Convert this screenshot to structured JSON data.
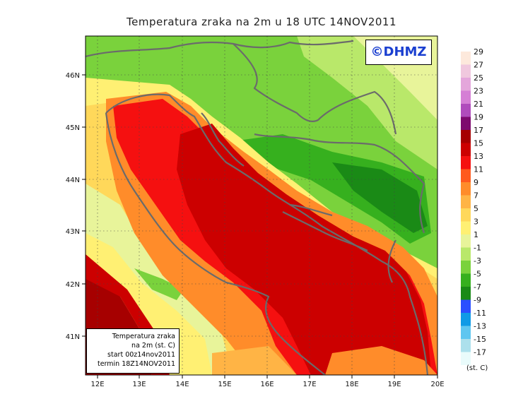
{
  "title": "Temperatura zraka na 2m u 18 UTC 14NOV2011",
  "logo_text": "©DHMZ",
  "info_box": {
    "line1": "Temperatura zraka",
    "line2": "na 2m (st. C)",
    "line3": "start 00z14nov2011",
    "line4": "termin 18Z14NOV2011"
  },
  "lon_ticks": [
    "12E",
    "13E",
    "14E",
    "15E",
    "16E",
    "17E",
    "18E",
    "19E",
    "20E"
  ],
  "lat_ticks": [
    "46N",
    "45N",
    "44N",
    "43N",
    "42N",
    "41N"
  ],
  "legend": {
    "units": "(st. C)",
    "levels": [
      {
        "label": "29",
        "color": "#fde9dc"
      },
      {
        "label": "27",
        "color": "#f0c8de"
      },
      {
        "label": "25",
        "color": "#e4a6db"
      },
      {
        "label": "23",
        "color": "#d57fd5"
      },
      {
        "label": "21",
        "color": "#b04cbc"
      },
      {
        "label": "19",
        "color": "#7e0a6e"
      },
      {
        "label": "17",
        "color": "#a60000"
      },
      {
        "label": "15",
        "color": "#cc0000"
      },
      {
        "label": "13",
        "color": "#f51010"
      },
      {
        "label": "11",
        "color": "#ff5a1e"
      },
      {
        "label": "9",
        "color": "#ff8c2a"
      },
      {
        "label": "7",
        "color": "#ffb445"
      },
      {
        "label": "5",
        "color": "#ffd85a"
      },
      {
        "label": "3",
        "color": "#fff073"
      },
      {
        "label": "1",
        "color": "#e8f49a"
      },
      {
        "label": "-1",
        "color": "#b9e86a"
      },
      {
        "label": "-3",
        "color": "#7ad23c"
      },
      {
        "label": "-5",
        "color": "#36b01e"
      },
      {
        "label": "-7",
        "color": "#1a8a16"
      },
      {
        "label": "-9",
        "color": "#2a4fff"
      },
      {
        "label": "-11",
        "color": "#0f9ae6"
      },
      {
        "label": "-13",
        "color": "#5fc6f0"
      },
      {
        "label": "-15",
        "color": "#ace0ec"
      },
      {
        "label": "-17",
        "color": "#e9fbfb"
      }
    ]
  }
}
